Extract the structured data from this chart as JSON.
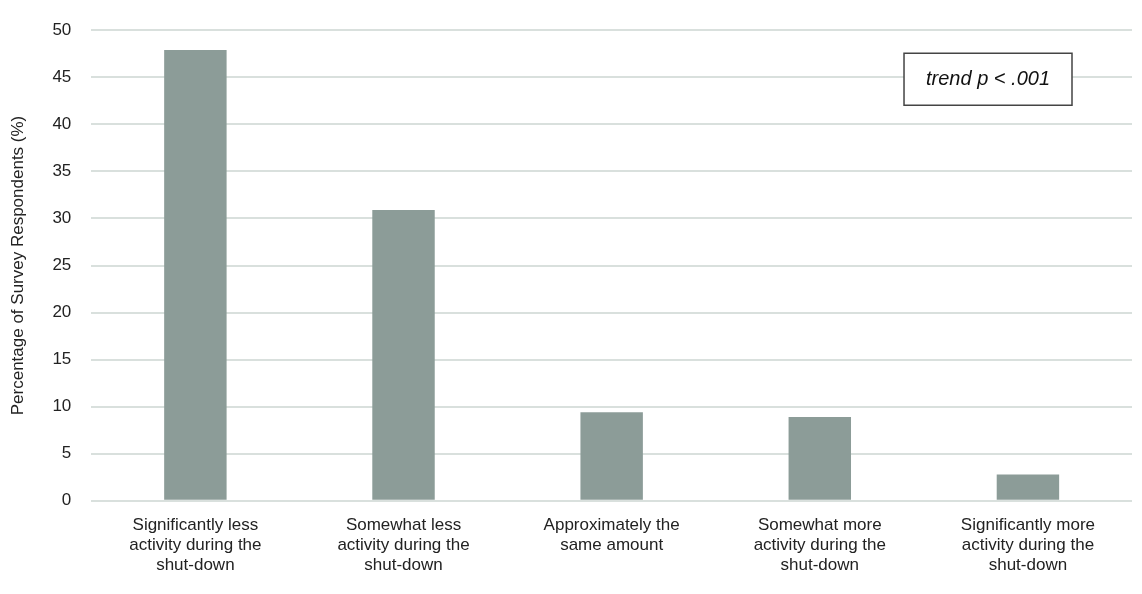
{
  "chart_data": {
    "type": "bar",
    "ylabel": "Percentage of Survey Respondents (%)",
    "categories": [
      "Significantly less activity during the shut-down",
      "Somewhat less activity during the shut-down",
      "Approximately the same amount",
      "Somewhat more activity during the shut-down",
      "Significantly more activity during the shut-down"
    ],
    "values": [
      47.9,
      30.9,
      9.4,
      8.9,
      2.8
    ],
    "color": "#8c9c98",
    "ylim": [
      0,
      50
    ],
    "yticks": [
      0,
      5,
      10,
      15,
      20,
      25,
      30,
      35,
      40,
      45,
      50
    ],
    "grid": "y",
    "legend": false,
    "annotations": [
      "trend p < .001"
    ]
  }
}
